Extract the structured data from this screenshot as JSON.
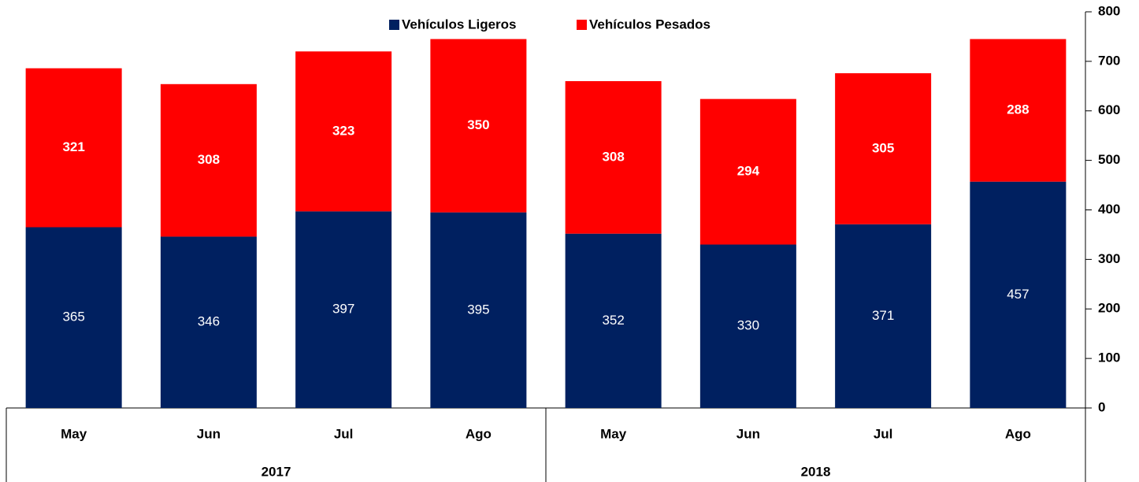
{
  "chart_data": {
    "type": "stacked_bar",
    "groups": [
      {
        "name": "2017",
        "categories": [
          "May",
          "Jun",
          "Jul",
          "Ago"
        ]
      },
      {
        "name": "2018",
        "categories": [
          "May",
          "Jun",
          "Jul",
          "Ago"
        ]
      }
    ],
    "series": [
      {
        "name": "Vehículos Ligeros",
        "color": "#002060",
        "values": [
          365,
          346,
          397,
          395,
          352,
          330,
          371,
          457
        ]
      },
      {
        "name": "Vehículos Pesados",
        "color": "#ff0000",
        "values": [
          321,
          308,
          323,
          350,
          308,
          294,
          305,
          288
        ]
      }
    ],
    "ylim": [
      0,
      800
    ],
    "yticks": [
      0,
      100,
      200,
      300,
      400,
      500,
      600,
      700,
      800
    ],
    "y_axis_side": "right",
    "legend": "top"
  }
}
